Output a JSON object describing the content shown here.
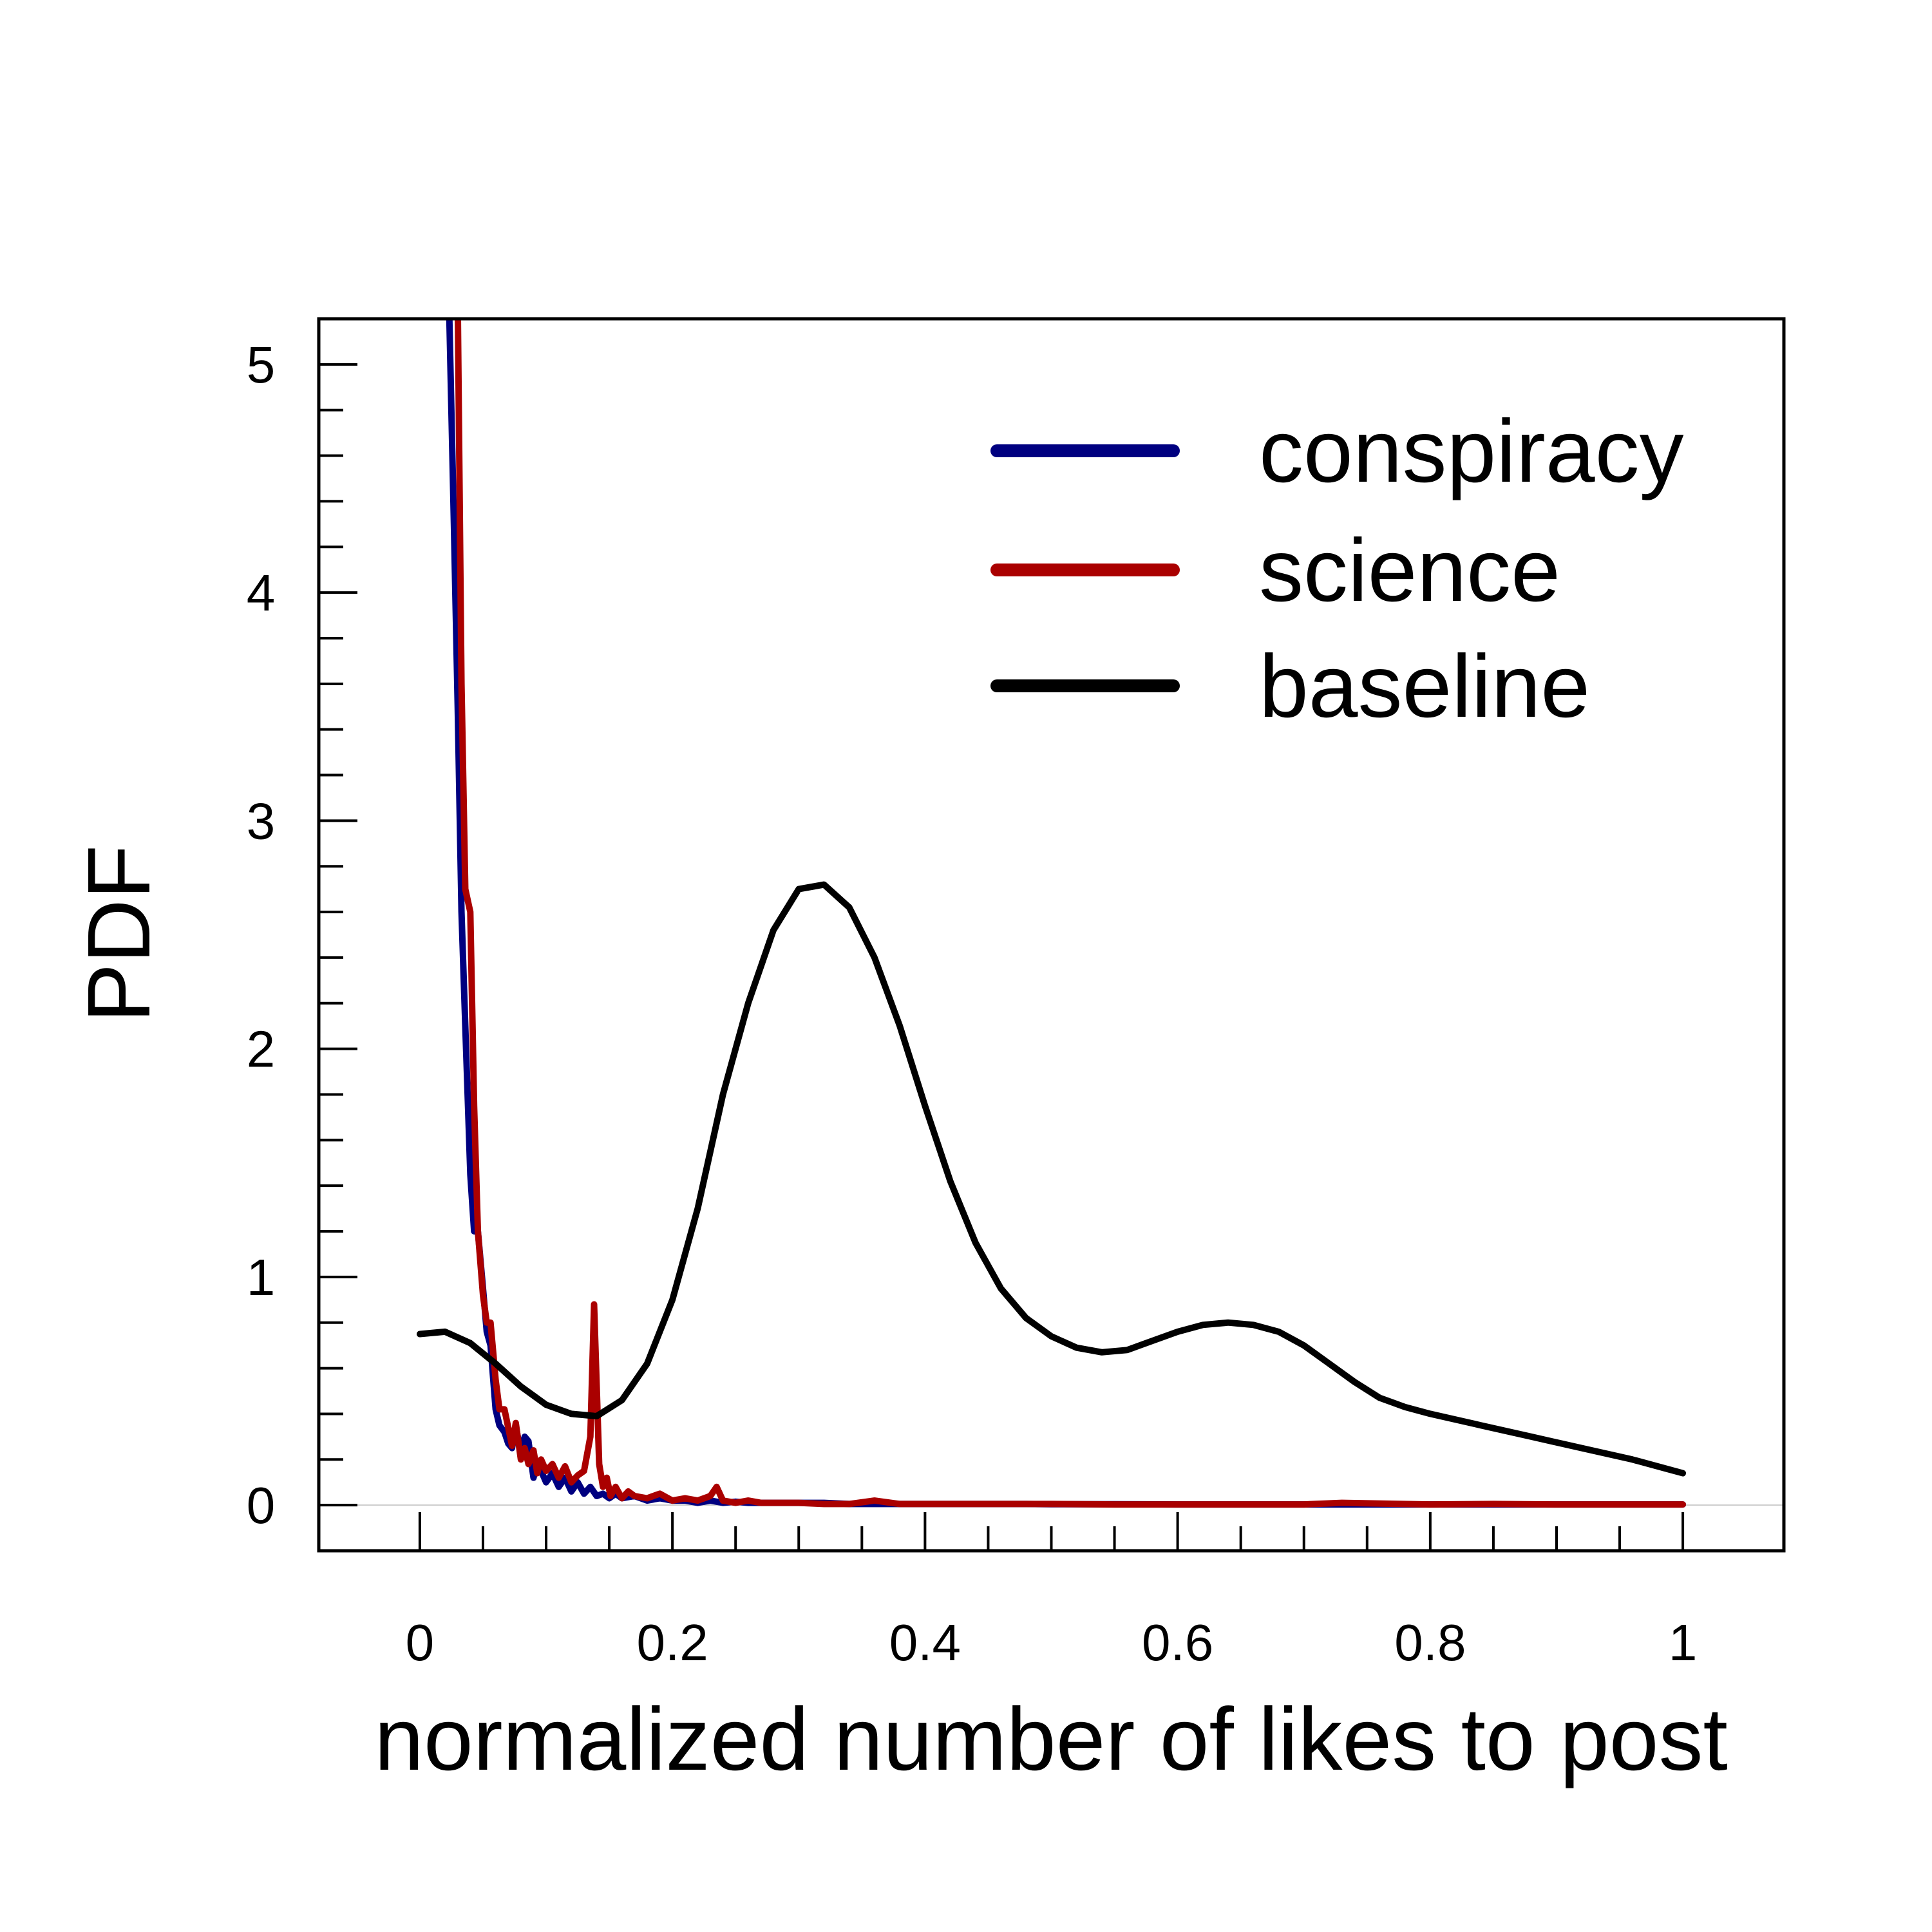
{
  "chart_data": {
    "type": "line",
    "title": "",
    "xlabel": "normalized number of likes to post",
    "ylabel": "PDF",
    "xlim": [
      -0.08,
      1.08
    ],
    "ylim": [
      -0.2,
      5.2
    ],
    "grid": false,
    "legend_position": "top-right",
    "x_ticks": [
      {
        "value": 0,
        "label": "0"
      },
      {
        "value": 0.2,
        "label": "0.2"
      },
      {
        "value": 0.4,
        "label": "0.4"
      },
      {
        "value": 0.6,
        "label": "0.6"
      },
      {
        "value": 0.8,
        "label": "0.8"
      },
      {
        "value": 1,
        "label": "1"
      }
    ],
    "y_ticks": [
      {
        "value": 0,
        "label": "0"
      },
      {
        "value": 1,
        "label": "1"
      },
      {
        "value": 2,
        "label": "2"
      },
      {
        "value": 3,
        "label": "3"
      },
      {
        "value": 4,
        "label": "4"
      },
      {
        "value": 5,
        "label": "5"
      }
    ],
    "series": [
      {
        "name": "conspiracy",
        "color": "#000080",
        "x": [
          0.023,
          0.027,
          0.03,
          0.033,
          0.036,
          0.04,
          0.043,
          0.046,
          0.05,
          0.053,
          0.056,
          0.06,
          0.063,
          0.067,
          0.07,
          0.073,
          0.076,
          0.08,
          0.083,
          0.086,
          0.09,
          0.093,
          0.096,
          0.1,
          0.105,
          0.11,
          0.115,
          0.12,
          0.125,
          0.13,
          0.135,
          0.14,
          0.145,
          0.15,
          0.155,
          0.16,
          0.17,
          0.18,
          0.19,
          0.2,
          0.21,
          0.22,
          0.23,
          0.24,
          0.25,
          0.26,
          0.27,
          0.28,
          0.3,
          0.32,
          0.34,
          0.36,
          0.38,
          0.4,
          0.42,
          0.44,
          0.46,
          0.48,
          0.5,
          0.55,
          0.6,
          0.65,
          0.7,
          0.8,
          0.9,
          1.0
        ],
        "y": [
          5.3,
          4.3,
          3.5,
          2.6,
          2.1,
          1.45,
          1.2,
          1.2,
          0.95,
          0.76,
          0.7,
          0.42,
          0.35,
          0.32,
          0.27,
          0.25,
          0.35,
          0.22,
          0.3,
          0.28,
          0.12,
          0.18,
          0.15,
          0.1,
          0.14,
          0.08,
          0.12,
          0.06,
          0.1,
          0.05,
          0.08,
          0.04,
          0.05,
          0.03,
          0.05,
          0.03,
          0.04,
          0.02,
          0.03,
          0.02,
          0.02,
          0.01,
          0.02,
          0.01,
          0.015,
          0.01,
          0.01,
          0.01,
          0.01,
          0.01,
          0.005,
          0.005,
          0.005,
          0.005,
          0.005,
          0.005,
          0.005,
          0.005,
          0.004,
          0.004,
          0.003,
          0.003,
          0.003,
          0.003,
          0.003,
          0.003
        ]
      },
      {
        "name": "science",
        "color": "#aa0000",
        "x": [
          0.03,
          0.033,
          0.036,
          0.04,
          0.043,
          0.046,
          0.05,
          0.053,
          0.056,
          0.06,
          0.063,
          0.067,
          0.07,
          0.073,
          0.076,
          0.08,
          0.083,
          0.086,
          0.09,
          0.093,
          0.096,
          0.1,
          0.105,
          0.11,
          0.115,
          0.12,
          0.125,
          0.13,
          0.135,
          0.138,
          0.142,
          0.145,
          0.148,
          0.151,
          0.155,
          0.16,
          0.165,
          0.17,
          0.18,
          0.19,
          0.2,
          0.21,
          0.22,
          0.23,
          0.235,
          0.24,
          0.25,
          0.26,
          0.27,
          0.28,
          0.3,
          0.32,
          0.34,
          0.36,
          0.38,
          0.4,
          0.42,
          0.44,
          0.46,
          0.48,
          0.5,
          0.55,
          0.6,
          0.65,
          0.7,
          0.73,
          0.8,
          0.85,
          0.9,
          1.0
        ],
        "y": [
          5.3,
          3.6,
          2.7,
          2.6,
          1.75,
          1.2,
          0.92,
          0.8,
          0.8,
          0.55,
          0.42,
          0.42,
          0.34,
          0.26,
          0.36,
          0.2,
          0.25,
          0.18,
          0.24,
          0.14,
          0.2,
          0.15,
          0.18,
          0.12,
          0.17,
          0.1,
          0.13,
          0.15,
          0.3,
          0.88,
          0.18,
          0.08,
          0.12,
          0.04,
          0.08,
          0.03,
          0.06,
          0.04,
          0.03,
          0.05,
          0.02,
          0.03,
          0.02,
          0.04,
          0.08,
          0.02,
          0.01,
          0.02,
          0.01,
          0.01,
          0.01,
          0.005,
          0.005,
          0.02,
          0.005,
          0.005,
          0.005,
          0.005,
          0.005,
          0.005,
          0.005,
          0.003,
          0.003,
          0.003,
          0.003,
          0.01,
          0.003,
          0.005,
          0.003,
          0.003
        ]
      },
      {
        "name": "baseline",
        "color": "#000000",
        "x": [
          0.0,
          0.02,
          0.04,
          0.06,
          0.08,
          0.1,
          0.12,
          0.14,
          0.16,
          0.18,
          0.2,
          0.22,
          0.24,
          0.26,
          0.28,
          0.3,
          0.32,
          0.34,
          0.36,
          0.38,
          0.4,
          0.42,
          0.44,
          0.46,
          0.48,
          0.5,
          0.52,
          0.54,
          0.56,
          0.58,
          0.6,
          0.62,
          0.64,
          0.66,
          0.68,
          0.7,
          0.72,
          0.74,
          0.76,
          0.78,
          0.8,
          0.84,
          0.88,
          0.92,
          0.96,
          1.0
        ],
        "y": [
          0.75,
          0.76,
          0.71,
          0.62,
          0.52,
          0.44,
          0.4,
          0.39,
          0.46,
          0.62,
          0.9,
          1.3,
          1.8,
          2.2,
          2.52,
          2.7,
          2.72,
          2.62,
          2.4,
          2.1,
          1.75,
          1.42,
          1.15,
          0.95,
          0.82,
          0.74,
          0.69,
          0.67,
          0.68,
          0.72,
          0.76,
          0.79,
          0.8,
          0.79,
          0.76,
          0.7,
          0.62,
          0.54,
          0.47,
          0.43,
          0.4,
          0.35,
          0.3,
          0.25,
          0.2,
          0.14
        ]
      }
    ]
  }
}
